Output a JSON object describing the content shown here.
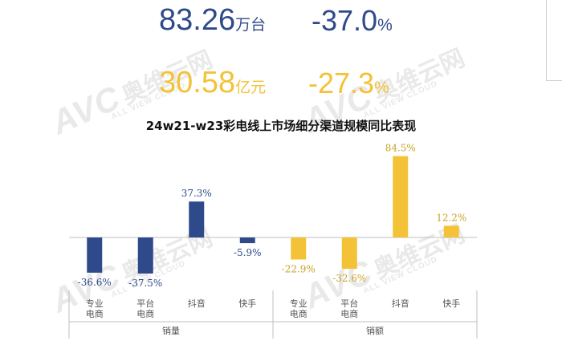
{
  "summary": {
    "volume": {
      "value": "83.26",
      "unit": "万台",
      "change": "-37.0",
      "pct": "%"
    },
    "amount": {
      "value": "30.58",
      "unit": "亿元",
      "change": "-27.3",
      "pct": "%"
    }
  },
  "colors": {
    "blue": "#2f4a8a",
    "gold": "#f3c236",
    "axis": "#bfbfbf",
    "text": "#555555"
  },
  "watermark": {
    "logo": "AVC",
    "cn": "奥维云网",
    "en": "ALL VIEW CLOUD"
  },
  "chart_data": {
    "type": "bar",
    "title": "24w21-w23彩电线上市场细分渠道规模同比表现",
    "groups": [
      {
        "name": "销量",
        "color": "#2f4a8a",
        "categories": [
          "专业电商",
          "平台电商",
          "抖音",
          "快手"
        ],
        "category_lines": [
          [
            "专业",
            "电商"
          ],
          [
            "平台",
            "电商"
          ],
          [
            "抖音"
          ],
          [
            "快手"
          ]
        ],
        "values": [
          -36.6,
          -37.5,
          37.3,
          -5.9
        ],
        "labels": [
          "-36.6%",
          "-37.5%",
          "37.3%",
          "-5.9%"
        ]
      },
      {
        "name": "销额",
        "color": "#f3c236",
        "categories": [
          "专业电商",
          "平台电商",
          "抖音",
          "快手"
        ],
        "category_lines": [
          [
            "专业",
            "电商"
          ],
          [
            "平台",
            "电商"
          ],
          [
            "抖音"
          ],
          [
            "快手"
          ]
        ],
        "values": [
          -22.9,
          -32.6,
          84.5,
          12.2
        ],
        "labels": [
          "-22.9%",
          "-32.6%",
          "84.5%",
          "12.2%"
        ]
      }
    ],
    "grid": false
  }
}
